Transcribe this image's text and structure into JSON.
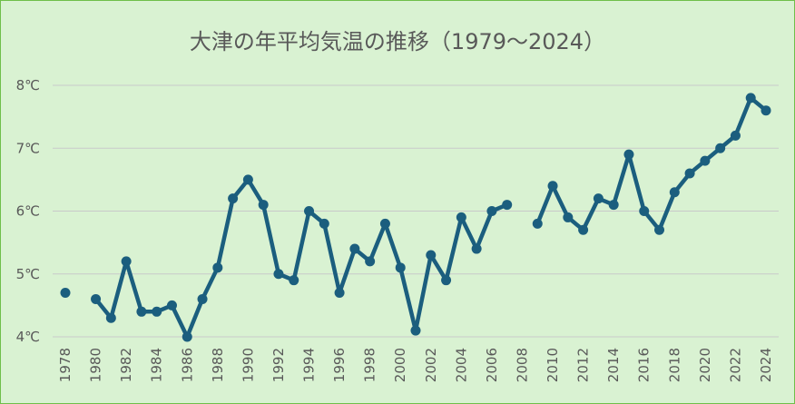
{
  "chart_data": {
    "type": "line",
    "title": "大津の年平均気温の推移（1979～2024）",
    "xlabel": "",
    "ylabel": "",
    "ylim": [
      4,
      8
    ],
    "y_ticks": [
      "4℃",
      "5℃",
      "6℃",
      "7℃",
      "8℃"
    ],
    "x_ticks": [
      "1978",
      "1980",
      "1982",
      "1984",
      "1986",
      "1988",
      "1990",
      "1992",
      "1994",
      "1996",
      "1998",
      "2000",
      "2002",
      "2004",
      "2006",
      "2008",
      "2010",
      "2012",
      "2014",
      "2016",
      "2018",
      "2020",
      "2022",
      "2024"
    ],
    "grid": true,
    "legend": "none",
    "line_color": "#1b5e7e",
    "x": [
      1978,
      1979,
      1980,
      1981,
      1982,
      1983,
      1984,
      1985,
      1986,
      1987,
      1988,
      1989,
      1990,
      1991,
      1992,
      1993,
      1994,
      1995,
      1996,
      1997,
      1998,
      1999,
      2000,
      2001,
      2002,
      2003,
      2004,
      2005,
      2006,
      2007,
      2008,
      2009,
      2010,
      2011,
      2012,
      2013,
      2014,
      2015,
      2016,
      2017,
      2018,
      2019,
      2020,
      2021,
      2022,
      2023,
      2024
    ],
    "values": [
      4.7,
      null,
      4.6,
      4.3,
      5.2,
      4.4,
      4.4,
      4.5,
      4.0,
      4.6,
      5.1,
      6.2,
      6.5,
      6.1,
      5.0,
      4.9,
      6.0,
      5.8,
      4.7,
      5.4,
      5.2,
      5.8,
      5.1,
      4.1,
      5.3,
      4.9,
      5.9,
      5.4,
      6.0,
      6.1,
      null,
      5.8,
      6.4,
      5.9,
      5.7,
      6.2,
      6.1,
      6.9,
      6.0,
      5.7,
      6.3,
      6.6,
      6.8,
      7.0,
      7.2,
      7.8,
      7.6
    ]
  }
}
